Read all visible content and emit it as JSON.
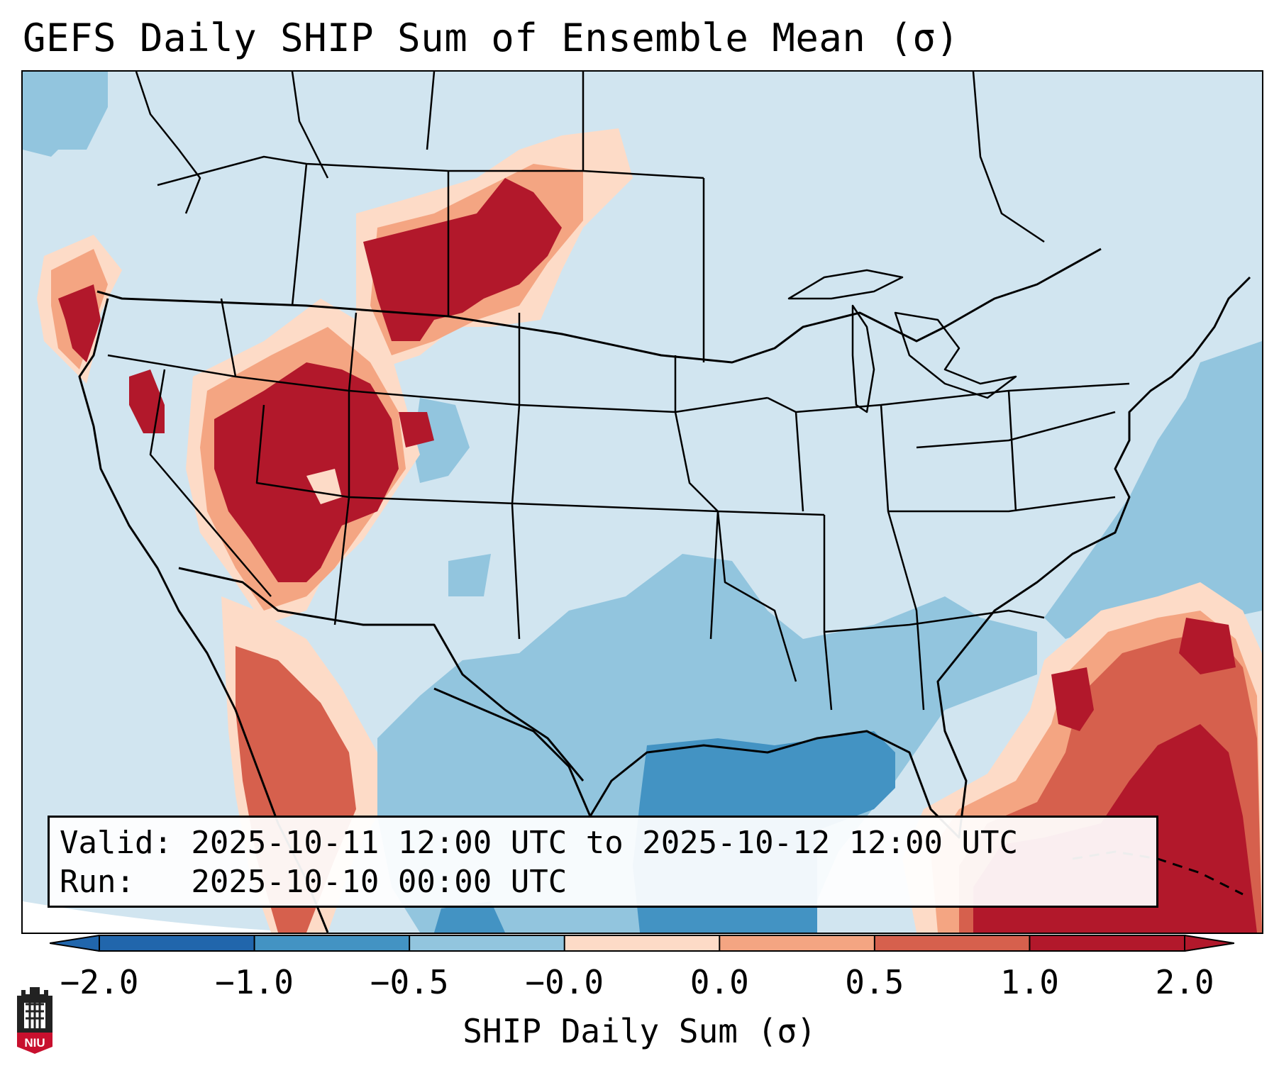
{
  "title": "GEFS Daily SHIP Sum of Ensemble Mean (σ)",
  "info": {
    "valid_line": "Valid: 2025-10-11 12:00 UTC to 2025-10-12 12:00 UTC",
    "run_line": "Run:   2025-10-10 00:00 UTC"
  },
  "colorbar": {
    "label": "SHIP Daily Sum (σ)",
    "ticks": [
      "−2.0",
      "−1.0",
      "−0.5",
      "−0.0",
      "0.0",
      "0.5",
      "1.0",
      "2.0"
    ],
    "levels": [
      -2.0,
      -1.0,
      -0.5,
      -0.0,
      0.0,
      0.5,
      1.0,
      2.0
    ],
    "colors": [
      "#2166ac",
      "#4393c3",
      "#92c5de",
      "#d1e5f0",
      "#fddbc7",
      "#f4a582",
      "#d6604d",
      "#b2182b"
    ],
    "extend": "both"
  },
  "map": {
    "region": "CONUS",
    "background_category": "#d1e5f0",
    "anomaly_areas": [
      {
        "name": "northern-rockies-high",
        "category": "high",
        "color": "#b2182b"
      },
      {
        "name": "great-basin-high",
        "category": "high",
        "color": "#b2182b"
      },
      {
        "name": "northern-california-high",
        "category": "high",
        "color": "#b2182b"
      },
      {
        "name": "western-mexico-high",
        "category": "high",
        "color": "#d6604d"
      },
      {
        "name": "caribbean-high",
        "category": "high",
        "color": "#b2182b"
      },
      {
        "name": "gulf-of-mexico-low",
        "category": "low",
        "color": "#4393c3"
      },
      {
        "name": "texas-low",
        "category": "low",
        "color": "#92c5de"
      },
      {
        "name": "atlantic-low",
        "category": "low",
        "color": "#92c5de"
      }
    ]
  },
  "logo": {
    "text": "NIU"
  }
}
